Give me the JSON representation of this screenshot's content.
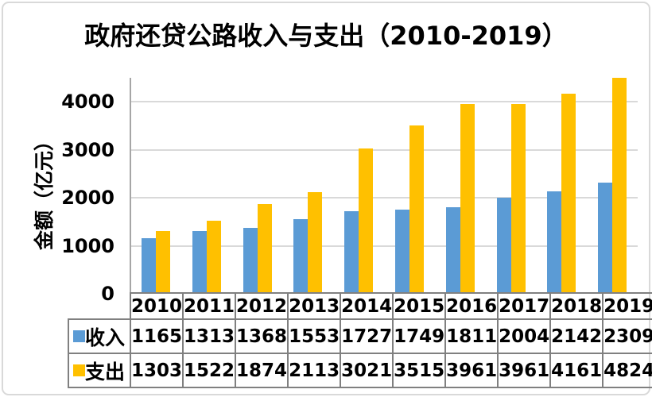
{
  "chart_data": {
    "type": "bar",
    "title": "政府还贷公路收入与支出（2010-2019）",
    "ylabel": "金额（亿元）",
    "xlabel": "",
    "categories": [
      "2010",
      "2011",
      "2012",
      "2013",
      "2014",
      "2015",
      "2016",
      "2017",
      "2018",
      "2019"
    ],
    "series": [
      {
        "name": "收入",
        "color": "#5B9BD5",
        "values": [
          1165,
          1313,
          1368,
          1553,
          1727,
          1749,
          1811,
          2004,
          2142,
          2309
        ]
      },
      {
        "name": "支出",
        "color": "#FFC000",
        "values": [
          1303,
          1522,
          1874,
          2113,
          3021,
          3515,
          3961,
          3961,
          4161,
          4824
        ]
      }
    ],
    "yticks": [
      0,
      1000,
      2000,
      3000,
      4000
    ],
    "ylim": [
      0,
      4500
    ],
    "grid": true,
    "legend_position": "table-left",
    "gridline_color": "#d9d9d9",
    "axis_line_color": "#a6a6a6",
    "table_border_color": "#808080",
    "text_color": "#000000"
  }
}
